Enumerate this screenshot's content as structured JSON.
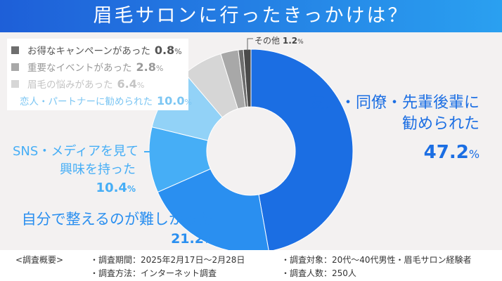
{
  "title": "眉毛サロンに行ったきっかけは？",
  "chart_data": {
    "type": "pie",
    "donut": true,
    "title": "眉毛サロンに行ったきっかけは？",
    "unit": "%",
    "slices": [
      {
        "label": "友人・同僚・先輩後輩に勧められた",
        "value": 47.2,
        "color": "#1b6ee3"
      },
      {
        "label": "自分で整えるのが難しかった",
        "value": 21.2,
        "color": "#2a8ff0"
      },
      {
        "label": "SNS・メディアを見て興味を持った",
        "value": 10.4,
        "color": "#46aef6"
      },
      {
        "label": "恋人・パートナーに勧められた",
        "value": 10.0,
        "color": "#92d2f7"
      },
      {
        "label": "眉毛の悩みがあった",
        "value": 6.4,
        "color": "#d6d6d6"
      },
      {
        "label": "重要なイベントがあった",
        "value": 2.8,
        "color": "#a8a8a8"
      },
      {
        "label": "お得なキャンペーンがあった",
        "value": 0.8,
        "color": "#6e6e6e"
      },
      {
        "label": "その他",
        "value": 1.2,
        "color": "#4a4a4a"
      }
    ]
  },
  "labels": {
    "l1a": "友人・同僚・先輩後輩に",
    "l1b": "勧められた",
    "v1": "47.2",
    "l2": "自分で整えるのが難しかった",
    "v2": "21.2",
    "l3a": "SNS・メディアを見て",
    "l3b": "興味を持った",
    "v3": "10.4",
    "other": "その他",
    "vother": "1.2",
    "pct": "%"
  },
  "legend": [
    {
      "label": "お得なキャンペーンがあった",
      "value": "0.8",
      "color": "#6e6e6e",
      "text": "#555"
    },
    {
      "label": "重要なイベントがあった",
      "value": "2.8",
      "color": "#a8a8a8",
      "text": "#999"
    },
    {
      "label": "眉毛の悩みがあった",
      "value": "6.4",
      "color": "#d6d6d6",
      "text": "#c4c4c4"
    },
    {
      "label": "恋人・パートナーに勧められた",
      "value": "10.0",
      "color": "#92d2f7",
      "text": "#7cc6f3"
    }
  ],
  "footer": {
    "heading": "<調査概要>",
    "period": "・調査期間：2025年2月17日〜2月28日",
    "method": "・調査方法：インターネット調査",
    "target": "・調査対象：20代〜40代男性・眉毛サロン経験者",
    "count": "・調査人数：250人"
  }
}
